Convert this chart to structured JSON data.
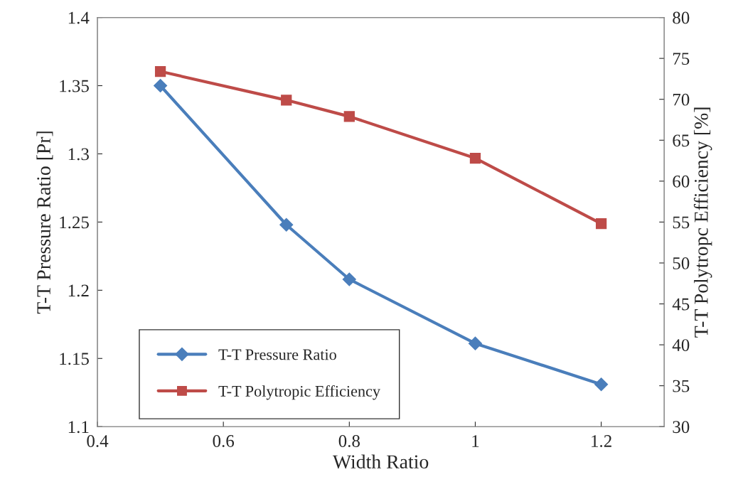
{
  "chart_data": {
    "type": "line",
    "xlabel": "Width Ratio",
    "ylabel": "T-T Pressure Ratio [Pr]",
    "y2label": "T-T Polytropc Efficiency [%]",
    "x": [
      0.5,
      0.7,
      0.8,
      1,
      1.2
    ],
    "series": [
      {
        "name": "T-T Pressure Ratio",
        "color": "#4a7ebb",
        "marker": "diamond",
        "values": [
          1.35,
          1.248,
          1.208,
          1.161,
          1.131
        ]
      },
      {
        "name": "T-T Polytropic Efficiency",
        "color": "#be4b48",
        "marker": "square",
        "axis": "y2",
        "values": [
          73.4,
          69.9,
          67.9,
          62.8,
          54.8
        ]
      }
    ],
    "xlim": [
      0.4,
      1.3
    ],
    "xticks": [
      0.4,
      0.6,
      0.8,
      1,
      1.2
    ],
    "ylim": [
      1.1,
      1.4
    ],
    "yticks": [
      1.1,
      1.15,
      1.2,
      1.25,
      1.3,
      1.35,
      1.4
    ],
    "y2lim": [
      30,
      80
    ],
    "y2ticks": [
      30,
      35,
      40,
      45,
      50,
      55,
      60,
      65,
      70,
      75,
      80
    ],
    "grid": false,
    "legend": "bottom left",
    "line_style": "solid"
  }
}
